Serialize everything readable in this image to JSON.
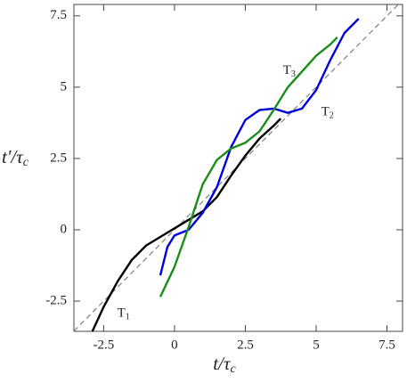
{
  "chart_data": {
    "type": "line",
    "x_label": {
      "main": "t/τ",
      "sub": "c"
    },
    "y_label": {
      "main": "t′/τ",
      "sub": "c"
    },
    "xlim": [
      -3.55,
      8.05
    ],
    "ylim": [
      -3.56,
      7.9
    ],
    "xticks": [
      -2.5,
      0,
      2.5,
      5,
      7.5
    ],
    "yticks": [
      -2.5,
      0,
      2.5,
      5,
      7.5
    ],
    "diagonal": {
      "color": "#888888",
      "dashed": true
    },
    "series": [
      {
        "name": "T",
        "sub": "1",
        "color": "#000000",
        "label_at": [
          -1.8,
          -2.95
        ],
        "x": [
          -2.9,
          -2.5,
          -2,
          -1.5,
          -1,
          -0.5,
          0,
          0.5,
          1,
          1.5,
          2,
          2.5,
          3,
          3.5,
          3.75
        ],
        "values": [
          -3.56,
          -2.7,
          -1.8,
          -1.05,
          -0.55,
          -0.25,
          0.05,
          0.35,
          0.65,
          1.15,
          1.9,
          2.6,
          3.2,
          3.65,
          3.9
        ]
      },
      {
        "name": "T",
        "sub": "2",
        "color": "#0000dd",
        "label_at": [
          5.4,
          4.1
        ],
        "x": [
          -0.5,
          -0.25,
          0,
          0.5,
          1,
          1.5,
          2,
          2.5,
          3,
          3.5,
          4,
          4.5,
          5,
          5.5,
          6,
          6.5
        ],
        "values": [
          -1.6,
          -0.6,
          -0.2,
          0.0,
          0.6,
          1.5,
          2.9,
          3.85,
          4.2,
          4.25,
          4.1,
          4.25,
          4.9,
          5.95,
          6.9,
          7.4
        ]
      },
      {
        "name": "T",
        "sub": "3",
        "color": "#1a8c1a",
        "label_at": [
          4.05,
          5.56
        ],
        "x": [
          -0.5,
          0,
          0.5,
          1,
          1.5,
          2,
          2.5,
          3,
          3.5,
          4,
          4.5,
          5,
          5.5,
          5.75
        ],
        "values": [
          -2.35,
          -1.3,
          0.1,
          1.6,
          2.45,
          2.85,
          3.05,
          3.45,
          4.2,
          5.0,
          5.55,
          6.1,
          6.5,
          6.75
        ]
      }
    ]
  }
}
